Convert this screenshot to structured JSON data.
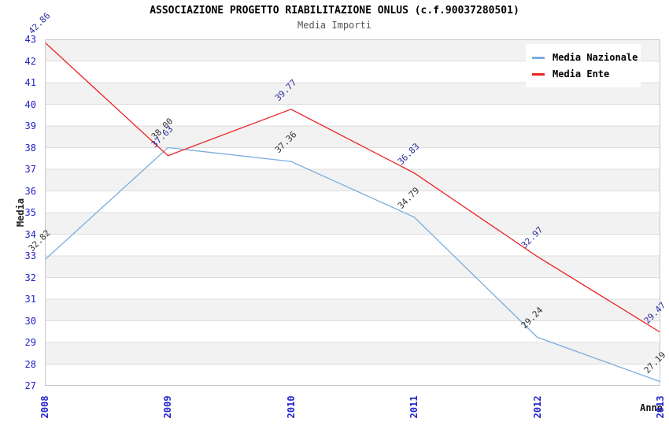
{
  "header": {
    "title": "ASSOCIAZIONE PROGETTO RIABILITAZIONE ONLUS (c.f.90037280501)",
    "subtitle": "Media Importi"
  },
  "chart_data": {
    "type": "line",
    "title": "ASSOCIAZIONE PROGETTO RIABILITAZIONE ONLUS (c.f.90037280501)",
    "subtitle": "Media Importi",
    "x": [
      "2008",
      "2009",
      "2010",
      "2011",
      "2012",
      "2013"
    ],
    "xlabel": "Anno",
    "ylabel": "Media",
    "ylim": [
      27,
      43
    ],
    "ytick_step": 1,
    "grid": "horizontal",
    "legend_position": "top-right",
    "series": [
      {
        "name": "Media Nazionale",
        "color": "#7aade0",
        "label_color": "#333333",
        "values": [
          32.82,
          38.0,
          37.36,
          34.79,
          29.24,
          27.19
        ]
      },
      {
        "name": "Media Ente",
        "color": "#ee2222",
        "label_color": "#2e2e9e",
        "values": [
          42.86,
          37.63,
          39.77,
          36.83,
          32.97,
          29.47
        ]
      }
    ]
  },
  "colors": {
    "tick_blue": "#2222cc",
    "frame": "#c8c8c8",
    "grid": "#dddddd",
    "band_gray": "#f2f2f2",
    "band_white": "#ffffff",
    "legend_bg": "#ffffff"
  }
}
